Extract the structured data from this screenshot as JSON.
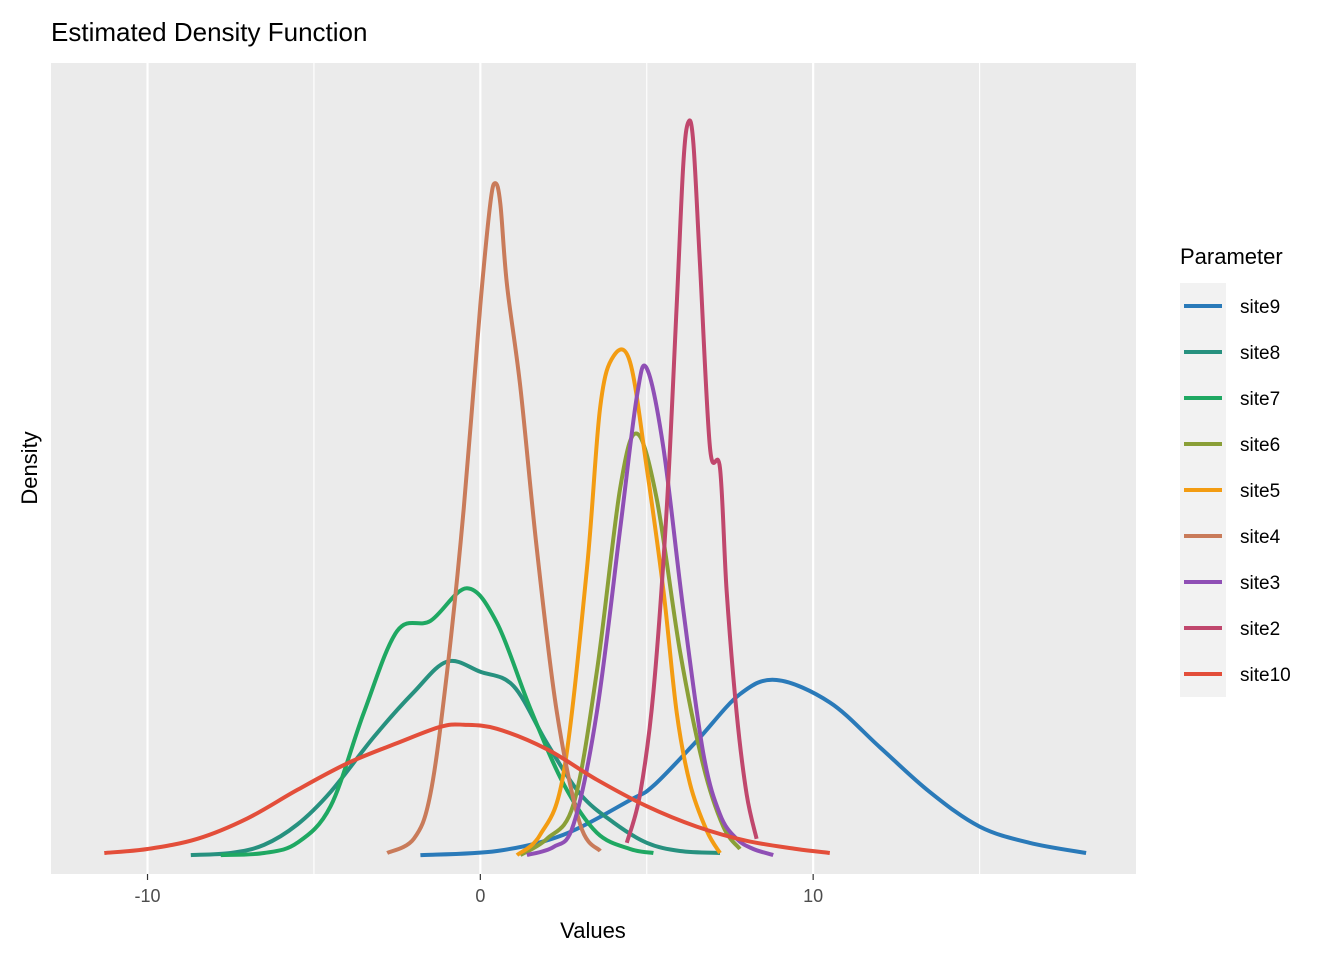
{
  "chart_data": {
    "type": "line",
    "title": "Estimated Density Function",
    "xlabel": "Values",
    "ylabel": "Density",
    "xlim": [
      -12.9,
      19.7
    ],
    "ylim": [
      -0.0093,
      0.389
    ],
    "x_ticks": [
      -10,
      0,
      10
    ],
    "x_tick_labels": [
      "-10",
      "0",
      "10"
    ],
    "x_minor_ticks": [
      -5,
      5,
      15
    ],
    "y_ticks_shown": false,
    "grid": true,
    "legend": {
      "title": "Parameter",
      "placement": "right"
    },
    "series": [
      {
        "name": "site9",
        "color": "#2a7ab9",
        "x": [
          -1.8,
          0.5,
          2.5,
          4.5,
          5.2,
          6.5,
          7.8,
          8.9,
          10.5,
          12.0,
          13.5,
          15.0,
          16.5,
          18.2
        ],
        "y": [
          0.0,
          0.002,
          0.01,
          0.027,
          0.034,
          0.056,
          0.079,
          0.086,
          0.075,
          0.053,
          0.031,
          0.014,
          0.006,
          0.001
        ]
      },
      {
        "name": "site8",
        "color": "#27917f",
        "x": [
          -8.7,
          -7.5,
          -6.5,
          -5.5,
          -4.5,
          -3.2,
          -2.0,
          -1.0,
          0.0,
          1.0,
          2.0,
          3.0,
          4.0,
          5.0,
          6.0,
          7.2
        ],
        "y": [
          0.0,
          0.001,
          0.005,
          0.015,
          0.031,
          0.058,
          0.08,
          0.095,
          0.09,
          0.083,
          0.055,
          0.03,
          0.016,
          0.006,
          0.002,
          0.001
        ]
      },
      {
        "name": "site7",
        "color": "#1fa862",
        "x": [
          -7.8,
          -6.5,
          -5.5,
          -4.5,
          -3.5,
          -2.5,
          -1.5,
          -0.4,
          0.5,
          1.5,
          2.5,
          3.5,
          4.5,
          5.2
        ],
        "y": [
          0.0,
          0.001,
          0.006,
          0.024,
          0.07,
          0.11,
          0.115,
          0.131,
          0.114,
          0.072,
          0.035,
          0.011,
          0.003,
          0.001
        ]
      },
      {
        "name": "site6",
        "color": "#8a9f37",
        "x": [
          1.2,
          2.0,
          2.8,
          3.5,
          4.2,
          4.7,
          5.3,
          6.0,
          6.7,
          7.3,
          7.8
        ],
        "y": [
          0.0,
          0.008,
          0.025,
          0.09,
          0.18,
          0.207,
          0.175,
          0.1,
          0.044,
          0.014,
          0.003
        ]
      },
      {
        "name": "site5",
        "color": "#f39c12",
        "x": [
          1.1,
          1.8,
          2.5,
          3.2,
          3.6,
          4.0,
          4.5,
          5.0,
          5.5,
          5.9,
          6.3,
          6.8,
          7.2
        ],
        "y": [
          0.0,
          0.01,
          0.04,
          0.14,
          0.22,
          0.245,
          0.242,
          0.19,
          0.13,
          0.07,
          0.035,
          0.012,
          0.001
        ]
      },
      {
        "name": "site4",
        "color": "#c97b5a",
        "x": [
          -2.8,
          -2.0,
          -1.5,
          -1.0,
          -0.5,
          0.0,
          0.3,
          0.45,
          0.6,
          0.8,
          1.2,
          1.7,
          2.3,
          3.0,
          3.6
        ],
        "y": [
          0.001,
          0.008,
          0.03,
          0.09,
          0.17,
          0.27,
          0.32,
          0.33,
          0.32,
          0.28,
          0.23,
          0.15,
          0.07,
          0.015,
          0.002
        ]
      },
      {
        "name": "site3",
        "color": "#8f4fb5",
        "x": [
          1.4,
          2.2,
          2.8,
          3.5,
          4.2,
          4.7,
          5.0,
          5.5,
          6.1,
          6.7,
          7.2,
          7.7,
          8.2,
          8.8
        ],
        "y": [
          0.0,
          0.004,
          0.015,
          0.07,
          0.16,
          0.225,
          0.239,
          0.2,
          0.12,
          0.05,
          0.02,
          0.008,
          0.003,
          0.0
        ]
      },
      {
        "name": "site2",
        "color": "#c0476d",
        "x": [
          4.4,
          4.8,
          5.2,
          5.6,
          5.9,
          6.1,
          6.25,
          6.4,
          6.6,
          6.9,
          7.2,
          7.4,
          7.7,
          8.0,
          8.3
        ],
        "y": [
          0.006,
          0.03,
          0.08,
          0.17,
          0.27,
          0.34,
          0.36,
          0.35,
          0.29,
          0.2,
          0.19,
          0.13,
          0.07,
          0.03,
          0.008
        ]
      },
      {
        "name": "site10",
        "color": "#e34e3a",
        "x": [
          -11.3,
          -10.0,
          -8.5,
          -7.0,
          -5.5,
          -4.0,
          -2.5,
          -1.2,
          -0.5,
          0.5,
          2.0,
          3.5,
          5.0,
          6.5,
          8.0,
          9.5,
          10.5
        ],
        "y": [
          0.001,
          0.003,
          0.008,
          0.018,
          0.032,
          0.045,
          0.055,
          0.063,
          0.064,
          0.062,
          0.052,
          0.037,
          0.024,
          0.014,
          0.007,
          0.003,
          0.001
        ]
      }
    ]
  }
}
